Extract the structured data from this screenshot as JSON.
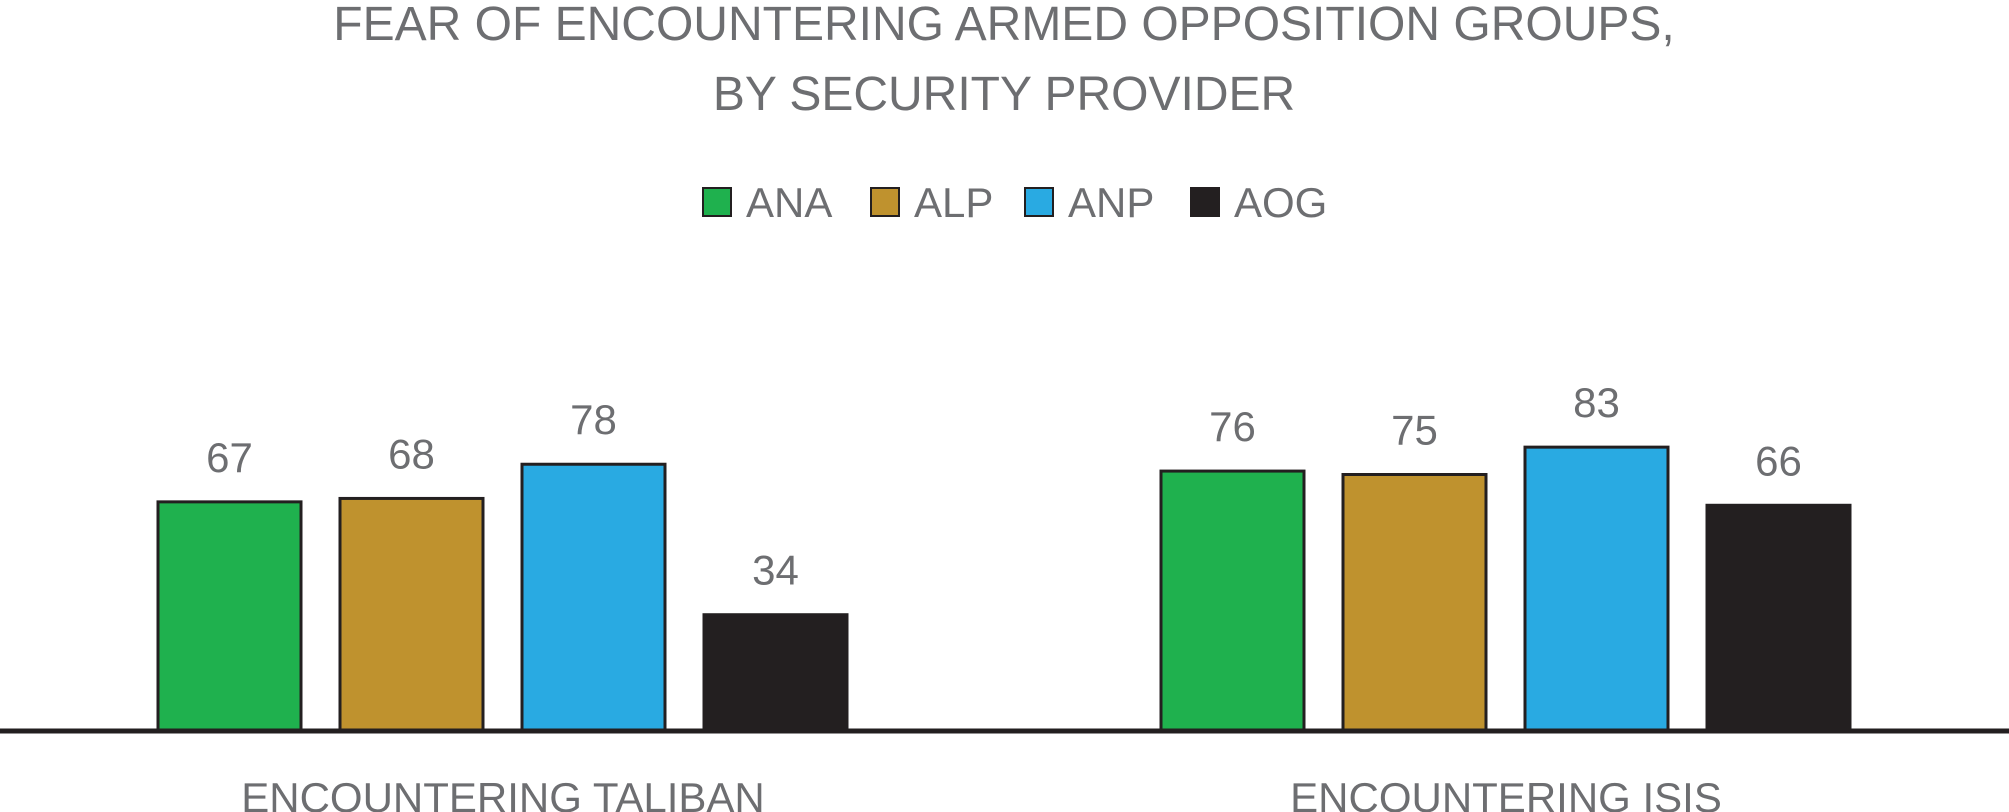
{
  "chart_data": {
    "type": "bar",
    "title_lines": [
      "FEAR OF ENCOUNTERING ARMED OPPOSITION GROUPS,",
      "BY SECURITY PROVIDER"
    ],
    "categories": [
      "ENCOUNTERING TALIBAN",
      "ENCOUNTERING ISIS"
    ],
    "series": [
      {
        "name": "ANA",
        "values": [
          67,
          76
        ],
        "color": "#1fb14e"
      },
      {
        "name": "ALP",
        "values": [
          68,
          75
        ],
        "color": "#bf922e"
      },
      {
        "name": "ANP",
        "values": [
          78,
          83
        ],
        "color": "#29aae2"
      },
      {
        "name": "AOG",
        "values": [
          34,
          66
        ],
        "color": "#231f20"
      }
    ],
    "ylim": [
      0,
      100
    ],
    "grid": false,
    "legend_position": "top-center",
    "text_color": "#6d6e71",
    "axis_color": "#231f20"
  }
}
